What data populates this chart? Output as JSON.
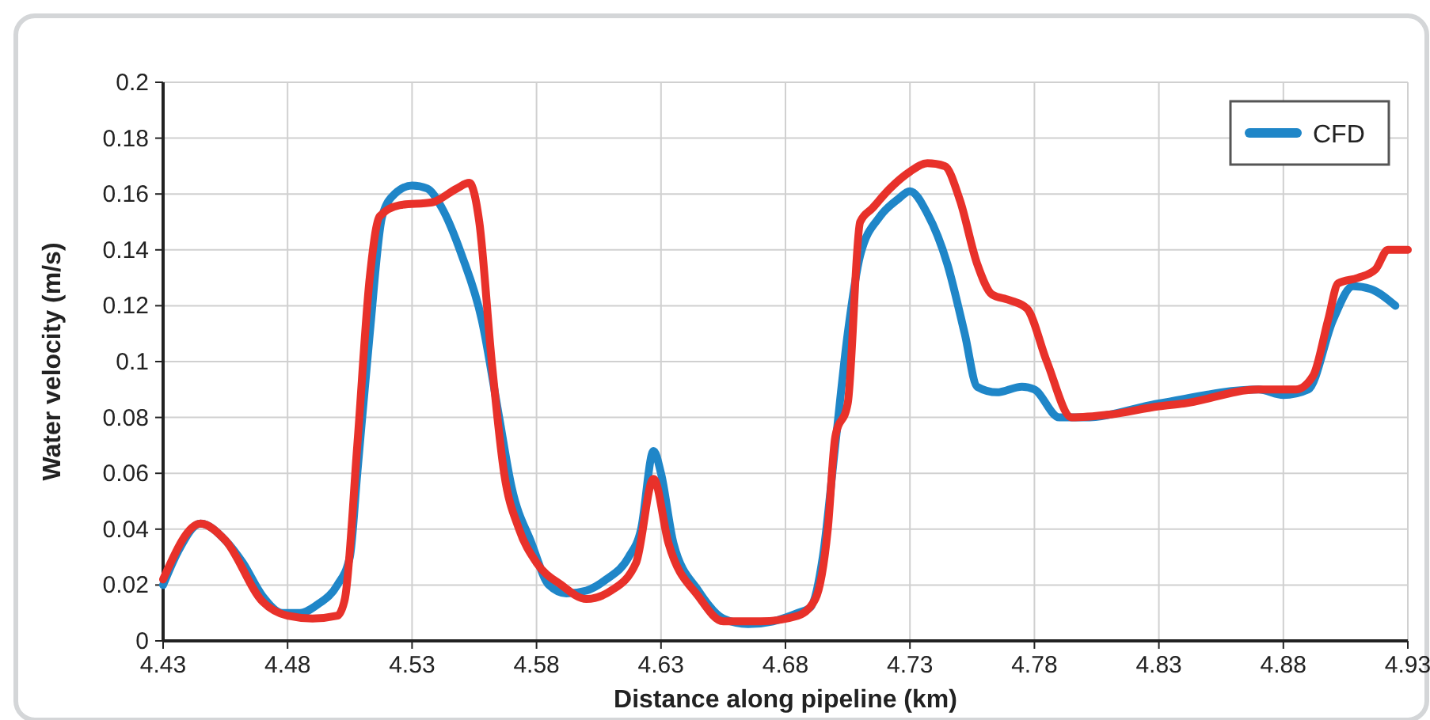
{
  "chart_data": {
    "type": "line",
    "xlabel": "Distance along pipeline (km)",
    "ylabel": "Water velocity (m/s)",
    "xlim": [
      4.43,
      4.93
    ],
    "xticks": [
      4.43,
      4.48,
      4.53,
      4.58,
      4.63,
      4.68,
      4.73,
      4.78,
      4.83,
      4.88,
      4.93
    ],
    "ylim": [
      0,
      0.2
    ],
    "yticks": [
      0,
      0.02,
      0.04,
      0.06,
      0.08,
      0.1,
      0.12,
      0.14,
      0.16,
      0.18,
      0.2
    ],
    "grid": true,
    "legend": "top right",
    "line_style": "solid",
    "series": [
      {
        "name": "CFD",
        "color": "#1f86c8",
        "x": [
          4.43,
          4.436,
          4.445,
          4.455,
          4.462,
          4.47,
          4.478,
          4.485,
          4.492,
          4.5,
          4.505,
          4.508,
          4.513,
          4.518,
          4.523,
          4.53,
          4.536,
          4.542,
          4.55,
          4.558,
          4.565,
          4.57,
          4.578,
          4.585,
          4.592,
          4.6,
          4.608,
          4.617,
          4.622,
          4.627,
          4.63,
          4.635,
          4.645,
          4.655,
          4.665,
          4.675,
          4.685,
          4.69,
          4.695,
          4.7,
          4.705,
          4.71,
          4.718,
          4.725,
          4.73,
          4.737,
          4.745,
          4.752,
          4.757,
          4.765,
          4.775,
          4.78,
          4.79,
          4.8,
          4.83,
          4.87,
          4.88,
          4.89,
          4.9,
          4.908,
          4.915,
          4.925
        ],
        "values": [
          0.02,
          0.032,
          0.042,
          0.036,
          0.028,
          0.016,
          0.01,
          0.01,
          0.013,
          0.02,
          0.03,
          0.06,
          0.11,
          0.152,
          0.16,
          0.163,
          0.162,
          0.155,
          0.138,
          0.115,
          0.08,
          0.055,
          0.035,
          0.02,
          0.017,
          0.018,
          0.022,
          0.03,
          0.04,
          0.068,
          0.06,
          0.035,
          0.018,
          0.008,
          0.006,
          0.007,
          0.01,
          0.012,
          0.03,
          0.07,
          0.11,
          0.138,
          0.152,
          0.158,
          0.161,
          0.153,
          0.135,
          0.11,
          0.091,
          0.089,
          0.091,
          0.09,
          0.08,
          0.08,
          0.085,
          0.09,
          0.088,
          0.09,
          0.115,
          0.127,
          0.126,
          0.12
        ]
      },
      {
        "color": "#e8312a",
        "x": [
          4.43,
          4.445,
          4.455,
          4.47,
          4.48,
          4.49,
          4.5,
          4.503,
          4.508,
          4.513,
          4.517,
          4.525,
          4.538,
          4.548,
          4.553,
          4.557,
          4.562,
          4.567,
          4.573,
          4.58,
          4.59,
          4.6,
          4.61,
          4.62,
          4.627,
          4.633,
          4.645,
          4.655,
          4.67,
          4.685,
          4.692,
          4.697,
          4.7,
          4.705,
          4.71,
          4.715,
          4.722,
          4.73,
          4.737,
          4.744,
          4.75,
          4.757,
          4.763,
          4.77,
          4.777,
          4.785,
          4.795,
          4.81,
          4.83,
          4.84,
          4.87,
          4.885,
          4.892,
          4.898,
          4.902,
          4.91,
          4.917,
          4.922,
          4.93
        ],
        "values": [
          0.022,
          0.042,
          0.036,
          0.014,
          0.009,
          0.008,
          0.009,
          0.015,
          0.07,
          0.13,
          0.152,
          0.156,
          0.157,
          0.162,
          0.164,
          0.15,
          0.1,
          0.06,
          0.04,
          0.028,
          0.02,
          0.015,
          0.018,
          0.028,
          0.058,
          0.035,
          0.016,
          0.007,
          0.007,
          0.009,
          0.015,
          0.04,
          0.073,
          0.085,
          0.15,
          0.155,
          0.162,
          0.168,
          0.171,
          0.17,
          0.158,
          0.135,
          0.124,
          0.122,
          0.119,
          0.1,
          0.08,
          0.081,
          0.084,
          0.085,
          0.09,
          0.09,
          0.095,
          0.115,
          0.128,
          0.13,
          0.133,
          0.14,
          0.14
        ]
      }
    ]
  }
}
